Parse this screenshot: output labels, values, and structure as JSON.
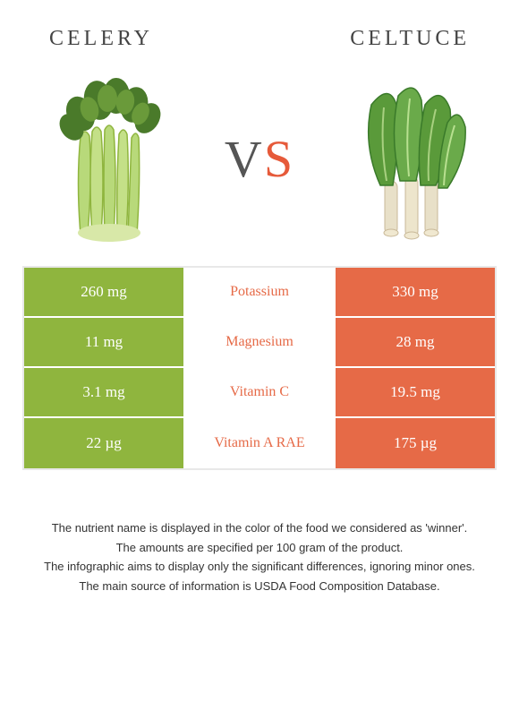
{
  "header": {
    "left_title": "Celery",
    "right_title": "Celtuce",
    "vs": {
      "letter1": "V",
      "letter2": "S"
    }
  },
  "colors": {
    "left_bg": "#8fb53e",
    "right_bg": "#e66a47",
    "winner_right_text": "#e66a47",
    "winner_left_text": "#8fb53e",
    "border": "#e8e8e8"
  },
  "rows": [
    {
      "left": "260 mg",
      "label": "Potassium",
      "right": "330 mg",
      "winner": "right"
    },
    {
      "left": "11 mg",
      "label": "Magnesium",
      "right": "28 mg",
      "winner": "right"
    },
    {
      "left": "3.1 mg",
      "label": "Vitamin C",
      "right": "19.5 mg",
      "winner": "right"
    },
    {
      "left": "22 µg",
      "label": "Vitamin A RAE",
      "right": "175 µg",
      "winner": "right"
    }
  ],
  "notes": [
    "The nutrient name is displayed in the color of the food we considered as 'winner'.",
    "The amounts are specified per 100 gram of the product.",
    "The infographic aims to display only the significant differences, ignoring minor ones.",
    "The main source of information is USDA Food Composition Database."
  ]
}
